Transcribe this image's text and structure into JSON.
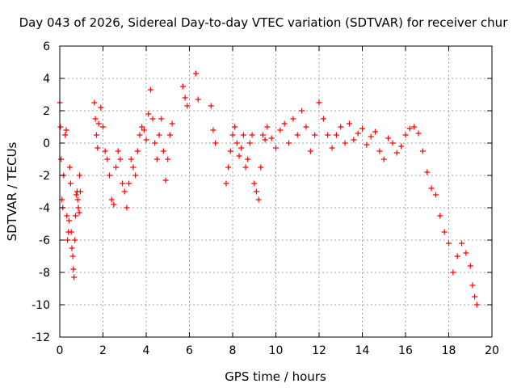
{
  "chart_data": {
    "type": "scatter",
    "title": "Day 043 of 2026, Sidereal Day-to-day VTEC variation (SDTVAR) for receiver chur",
    "xlabel": "GPS time / hours",
    "ylabel": "SDTVAR / TECUs",
    "xlim": [
      0,
      20
    ],
    "ylim": [
      -12,
      6
    ],
    "xticks": [
      0,
      2,
      4,
      6,
      8,
      10,
      12,
      14,
      16,
      18,
      20
    ],
    "yticks": [
      -12,
      -10,
      -8,
      -6,
      -4,
      -2,
      0,
      2,
      4,
      6
    ],
    "grid": true,
    "marker": "+",
    "color": "#ff0000",
    "series": [
      {
        "name": "SDTVAR",
        "x": [
          0.0,
          0.03,
          0.06,
          0.1,
          0.14,
          0.18,
          0.25,
          0.3,
          0.33,
          0.36,
          0.4,
          0.43,
          0.46,
          0.5,
          0.53,
          0.56,
          0.6,
          0.63,
          0.66,
          0.7,
          0.73,
          0.76,
          0.8,
          0.83,
          0.86,
          0.9,
          0.92,
          0.95,
          1.6,
          1.65,
          1.7,
          1.75,
          1.8,
          1.9,
          2.0,
          2.1,
          2.2,
          2.3,
          2.4,
          2.5,
          2.6,
          2.7,
          2.8,
          2.9,
          3.0,
          3.1,
          3.2,
          3.3,
          3.4,
          3.5,
          3.6,
          3.7,
          3.8,
          3.9,
          4.0,
          4.1,
          4.2,
          4.3,
          4.4,
          4.5,
          4.6,
          4.7,
          4.8,
          4.9,
          5.0,
          5.1,
          5.2,
          5.7,
          5.8,
          5.9,
          6.3,
          6.4,
          7.0,
          7.1,
          7.2,
          7.7,
          7.8,
          7.9,
          8.0,
          8.1,
          8.2,
          8.3,
          8.4,
          8.5,
          8.6,
          8.7,
          8.8,
          8.9,
          9.0,
          9.1,
          9.2,
          9.3,
          9.4,
          9.5,
          9.6,
          9.8,
          10.0,
          10.2,
          10.4,
          10.6,
          10.8,
          11.0,
          11.2,
          11.4,
          11.6,
          11.8,
          12.0,
          12.2,
          12.4,
          12.6,
          12.8,
          13.0,
          13.2,
          13.4,
          13.6,
          13.8,
          14.0,
          14.2,
          14.4,
          14.6,
          14.8,
          15.0,
          15.2,
          15.4,
          15.6,
          15.8,
          16.0,
          16.2,
          16.4,
          16.6,
          16.8,
          17.0,
          17.2,
          17.4,
          17.6,
          17.8,
          18.0,
          18.2,
          18.4,
          18.6,
          18.8,
          19.0,
          19.1,
          19.2,
          19.3
        ],
        "y": [
          2.5,
          1.0,
          -1.0,
          -3.5,
          -4.0,
          -2.0,
          0.5,
          0.8,
          -4.5,
          -6.0,
          -5.5,
          -4.8,
          -1.5,
          -2.5,
          -5.5,
          -6.5,
          -7.0,
          -7.8,
          -8.3,
          -6.0,
          -4.5,
          -3.2,
          -3.0,
          -3.5,
          -4.0,
          -4.3,
          -2.0,
          -3.0,
          2.5,
          1.5,
          0.5,
          -0.3,
          1.2,
          2.2,
          1.0,
          -0.5,
          -1.0,
          -2.0,
          -3.5,
          -3.8,
          -1.5,
          -0.5,
          -1.0,
          -2.5,
          -3.0,
          -4.0,
          -2.5,
          -1.0,
          -1.5,
          -2.0,
          -0.5,
          0.5,
          1.0,
          0.8,
          0.2,
          1.8,
          3.3,
          1.5,
          0.0,
          -1.0,
          0.5,
          1.5,
          -0.5,
          -2.3,
          -1.0,
          0.5,
          1.2,
          3.5,
          2.8,
          2.3,
          4.3,
          2.7,
          2.3,
          0.8,
          0.0,
          -2.5,
          -1.5,
          -0.5,
          0.5,
          1.0,
          0.0,
          -0.8,
          -0.3,
          0.5,
          -1.5,
          -1.0,
          0.0,
          0.5,
          -2.5,
          -3.0,
          -3.5,
          -1.5,
          0.5,
          0.2,
          1.0,
          0.3,
          -0.3,
          0.8,
          1.2,
          0.0,
          1.5,
          0.5,
          2.0,
          1.0,
          -0.5,
          0.5,
          2.5,
          1.5,
          0.5,
          -0.3,
          0.5,
          1.0,
          0.0,
          1.2,
          0.2,
          0.6,
          0.9,
          -0.1,
          0.4,
          0.7,
          -0.5,
          -1.0,
          0.3,
          0.0,
          -0.6,
          -0.2,
          0.5,
          0.9,
          1.0,
          0.6,
          -0.5,
          -1.8,
          -2.8,
          -3.2,
          -4.5,
          -5.5,
          -6.2,
          -8.0,
          -7.0,
          -6.2,
          -6.8,
          -7.6,
          -8.8,
          -9.5,
          -10.0
        ]
      }
    ]
  }
}
